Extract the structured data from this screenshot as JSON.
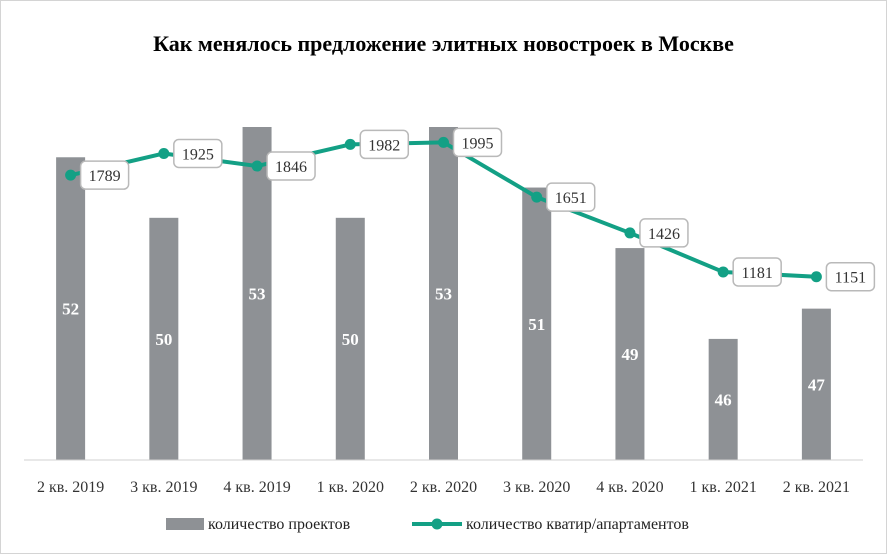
{
  "chart_data": {
    "type": "bar",
    "title": "Как менялось предложение элитных новостроек  в Москве",
    "categories": [
      "2 кв. 2019",
      "3 кв. 2019",
      "4 кв. 2019",
      "1 кв. 2020",
      "2 кв. 2020",
      "3 кв. 2020",
      "4 кв. 2020",
      "1 кв. 2021",
      "2 кв. 2021"
    ],
    "series": [
      {
        "name": "количество проектов",
        "type": "bar",
        "color": "#8e9195",
        "values": [
          52,
          50,
          53,
          50,
          53,
          51,
          49,
          46,
          47
        ]
      },
      {
        "name": "количество кватир/апартаментов",
        "type": "line",
        "color": "#13a085",
        "values": [
          1789,
          1925,
          1846,
          1982,
          1995,
          1651,
          1426,
          1181,
          1151
        ]
      }
    ],
    "bar_axis_range": [
      42,
      53
    ],
    "line_axis_range": [
      0,
      2600
    ],
    "legend_position": "bottom",
    "grid": false
  }
}
